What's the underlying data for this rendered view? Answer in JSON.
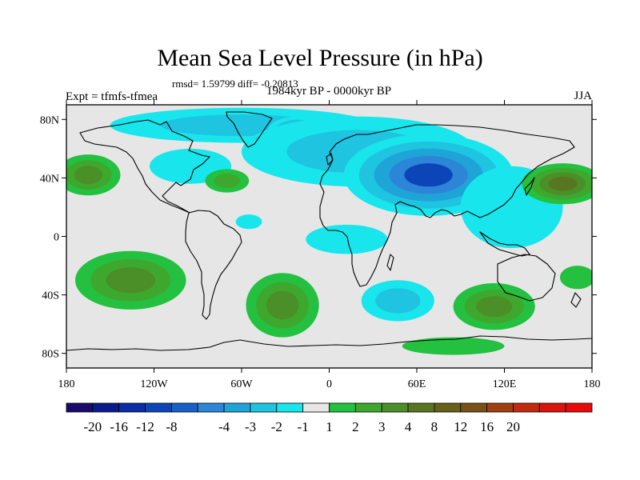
{
  "title": "Mean Sea Level Pressure (in hPa)",
  "stats_text": "rmsd= 1.59799 diff= -0.20813",
  "left_label": "Expt = tfmfs-tfmea",
  "subtitle": "1984kyr BP - 0000kyr BP",
  "season": "JJA",
  "chart_data": {
    "type": "heatmap",
    "projection": "cylindrical equidistant",
    "variable": "Mean sea level pressure difference",
    "units": "hPa",
    "xlim": [
      -180,
      180
    ],
    "ylim": [
      -90,
      90
    ],
    "x_ticks": [
      {
        "value": -180,
        "label": "180"
      },
      {
        "value": -120,
        "label": "120W"
      },
      {
        "value": -60,
        "label": "60W"
      },
      {
        "value": 0,
        "label": "0"
      },
      {
        "value": 60,
        "label": "60E"
      },
      {
        "value": 120,
        "label": "120E"
      },
      {
        "value": 180,
        "label": "180"
      }
    ],
    "y_ticks": [
      {
        "value": 80,
        "label": "80N"
      },
      {
        "value": 40,
        "label": "40N"
      },
      {
        "value": 0,
        "label": "0"
      },
      {
        "value": -40,
        "label": "40S"
      },
      {
        "value": -80,
        "label": "80S"
      }
    ],
    "colorbar": {
      "colors": [
        "#1a0a6e",
        "#0d1a8c",
        "#0a2ca6",
        "#0c45b8",
        "#1660c8",
        "#2d85d8",
        "#1fa4d8",
        "#1fc4e0",
        "#18e6ec",
        "#e6e6e6",
        "#24c040",
        "#3ea82e",
        "#4a8f28",
        "#587620",
        "#66601a",
        "#7a5016",
        "#a04012",
        "#c02a0e",
        "#d8140c",
        "#e80a0a"
      ],
      "labels": [
        {
          "index": 1,
          "text": "-20"
        },
        {
          "index": 2,
          "text": "-16"
        },
        {
          "index": 3,
          "text": "-12"
        },
        {
          "index": 4,
          "text": "-8"
        },
        {
          "index": 6,
          "text": "-4"
        },
        {
          "index": 7,
          "text": "-3"
        },
        {
          "index": 8,
          "text": "-2"
        },
        {
          "index": 9,
          "text": "-1"
        },
        {
          "index": 10,
          "text": "1"
        },
        {
          "index": 11,
          "text": "2"
        },
        {
          "index": 12,
          "text": "3"
        },
        {
          "index": 13,
          "text": "4"
        },
        {
          "index": 14,
          "text": "8"
        },
        {
          "index": 15,
          "text": "12"
        },
        {
          "index": 16,
          "text": "16"
        },
        {
          "index": 17,
          "text": "20"
        }
      ]
    },
    "anomalies": [
      {
        "lon": -60,
        "lat": 76,
        "rlon": 90,
        "rlat": 12,
        "levels": [
          -1,
          -2
        ]
      },
      {
        "lon": -22,
        "lat": 72,
        "rlon": 20,
        "rlat": 10,
        "levels": [
          -1,
          -2,
          -3,
          -4
        ]
      },
      {
        "lon": 20,
        "lat": 58,
        "rlon": 80,
        "rlat": 24,
        "levels": [
          -1,
          -2
        ]
      },
      {
        "lon": 68,
        "lat": 42,
        "rlon": 58,
        "rlat": 28,
        "levels": [
          -1,
          -2,
          -3,
          -4,
          -8
        ]
      },
      {
        "lon": -95,
        "lat": 48,
        "rlon": 28,
        "rlat": 12,
        "levels": [
          -1
        ]
      },
      {
        "lon": -55,
        "lat": 10,
        "rlon": 9,
        "rlat": 5,
        "levels": [
          -1
        ]
      },
      {
        "lon": 12,
        "lat": -2,
        "rlon": 28,
        "rlat": 10,
        "levels": [
          -1
        ]
      },
      {
        "lon": 47,
        "lat": -44,
        "rlon": 25,
        "rlat": 14,
        "levels": [
          -1,
          -2
        ]
      },
      {
        "lon": 125,
        "lat": 20,
        "rlon": 35,
        "rlat": 28,
        "levels": [
          -1
        ]
      },
      {
        "lon": -165,
        "lat": 42,
        "rlon": 22,
        "rlat": 14,
        "levels": [
          1,
          2,
          3
        ]
      },
      {
        "lon": -70,
        "lat": 38,
        "rlon": 15,
        "rlat": 8,
        "levels": [
          1,
          2
        ]
      },
      {
        "lon": 160,
        "lat": 36,
        "rlon": 28,
        "rlat": 14,
        "levels": [
          1,
          2,
          3,
          4
        ]
      },
      {
        "lon": -136,
        "lat": -30,
        "rlon": 38,
        "rlat": 20,
        "levels": [
          1,
          2,
          3
        ]
      },
      {
        "lon": -32,
        "lat": -47,
        "rlon": 25,
        "rlat": 22,
        "levels": [
          1,
          2,
          3
        ]
      },
      {
        "lon": 113,
        "lat": -48,
        "rlon": 28,
        "rlat": 16,
        "levels": [
          1,
          2,
          3
        ]
      },
      {
        "lon": 170,
        "lat": -28,
        "rlon": 12,
        "rlat": 8,
        "levels": [
          1
        ]
      },
      {
        "lon": 85,
        "lat": -75,
        "rlon": 35,
        "rlat": 6,
        "levels": [
          1
        ]
      }
    ]
  }
}
